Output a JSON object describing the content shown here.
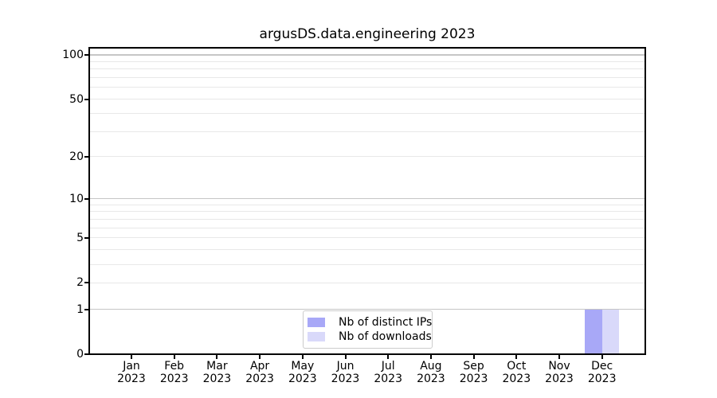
{
  "chart_data": {
    "type": "bar",
    "title": "argusDS.data.engineering 2023",
    "x_tick_year": "2023",
    "categories": [
      "Jan 2023",
      "Feb 2023",
      "Mar 2023",
      "Apr 2023",
      "May 2023",
      "Jun 2023",
      "Jul 2023",
      "Aug 2023",
      "Sep 2023",
      "Oct 2023",
      "Nov 2023",
      "Dec 2023"
    ],
    "months": [
      "Jan",
      "Feb",
      "Mar",
      "Apr",
      "May",
      "Jun",
      "Jul",
      "Aug",
      "Sep",
      "Oct",
      "Nov",
      "Dec"
    ],
    "series": [
      {
        "name": "Nb of distinct IPs",
        "color": "#a8a8f7",
        "values": [
          0,
          0,
          0,
          0,
          0,
          0,
          0,
          0,
          0,
          0,
          0,
          1
        ]
      },
      {
        "name": "Nb of downloads",
        "color": "#d9d9fa",
        "values": [
          0,
          0,
          0,
          0,
          0,
          0,
          0,
          0,
          0,
          0,
          0,
          1
        ]
      }
    ],
    "y_scale": "log1p",
    "ylim": [
      0,
      113
    ],
    "y_ticks": [
      0,
      1,
      2,
      5,
      10,
      20,
      50,
      100
    ],
    "y_tick_labels": [
      "0",
      "1",
      "2",
      "5",
      "10",
      "20",
      "50",
      "100"
    ],
    "y_major_gridlines": [
      1,
      10,
      100
    ],
    "y_minor_gridlines": [
      2,
      3,
      4,
      5,
      6,
      7,
      8,
      9,
      20,
      30,
      40,
      50,
      60,
      70,
      80,
      90,
      110
    ],
    "grid": true,
    "legend_position": "lower center"
  },
  "colors": {
    "spine": "#000000",
    "grid_major": "#c6c6c6",
    "grid_minor": "#e8e8e8",
    "text": "#000000",
    "legend_border": "#cccccc",
    "legend_background": "#ffffff"
  }
}
